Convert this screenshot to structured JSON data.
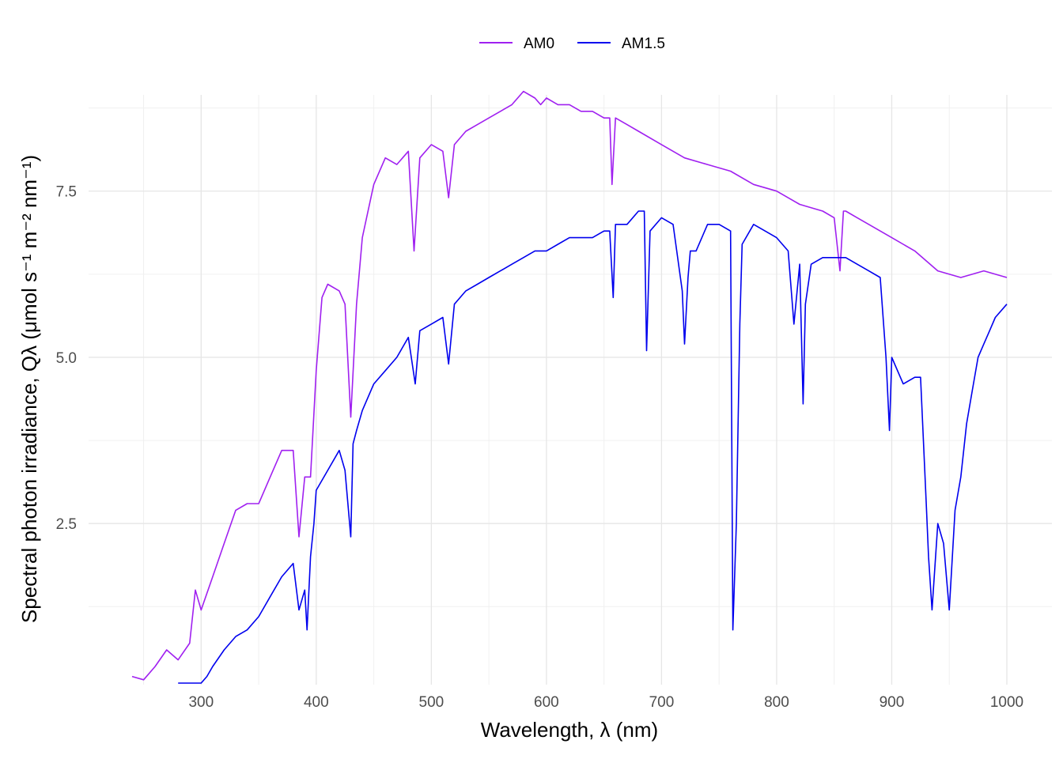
{
  "chart_data": {
    "type": "line",
    "xlabel": "Wavelength,  λ (nm)",
    "ylabel": "Spectral photon irradiance,  Qλ (μmol s⁻¹ m⁻² nm⁻¹)",
    "xlim": [
      240,
      1000
    ],
    "ylim": [
      0.1,
      8.9
    ],
    "x_ticks": [
      "300",
      "400",
      "500",
      "600",
      "700",
      "800",
      "900",
      "1000"
    ],
    "y_ticks": [
      "2.5",
      "5.0",
      "7.5"
    ],
    "grid": true,
    "legend_position": "top",
    "series": [
      {
        "name": "AM0",
        "color": "#a020f0",
        "x": [
          240,
          250,
          260,
          270,
          280,
          290,
          295,
          300,
          310,
          320,
          330,
          340,
          350,
          360,
          370,
          380,
          385,
          390,
          395,
          400,
          405,
          410,
          420,
          425,
          430,
          435,
          440,
          445,
          450,
          460,
          470,
          480,
          485,
          490,
          500,
          510,
          515,
          520,
          530,
          540,
          550,
          560,
          570,
          580,
          590,
          595,
          600,
          610,
          620,
          630,
          640,
          650,
          655,
          657,
          660,
          670,
          680,
          700,
          720,
          740,
          760,
          780,
          800,
          820,
          840,
          850,
          855,
          858,
          860,
          870,
          880,
          900,
          920,
          940,
          960,
          980,
          1000
        ],
        "y": [
          0.2,
          0.15,
          0.35,
          0.6,
          0.45,
          0.7,
          1.5,
          1.2,
          1.7,
          2.2,
          2.7,
          2.8,
          2.8,
          3.2,
          3.6,
          3.6,
          2.3,
          3.2,
          3.2,
          4.8,
          5.9,
          6.1,
          6.0,
          5.8,
          4.1,
          5.8,
          6.8,
          7.2,
          7.6,
          8.0,
          7.9,
          8.1,
          6.6,
          8.0,
          8.2,
          8.1,
          7.4,
          8.2,
          8.4,
          8.5,
          8.6,
          8.7,
          8.8,
          9.0,
          8.9,
          8.8,
          8.9,
          8.8,
          8.8,
          8.7,
          8.7,
          8.6,
          8.6,
          7.6,
          8.6,
          8.5,
          8.4,
          8.2,
          8.0,
          7.9,
          7.8,
          7.6,
          7.5,
          7.3,
          7.2,
          7.1,
          6.3,
          7.2,
          7.2,
          7.1,
          7.0,
          6.8,
          6.6,
          6.3,
          6.2,
          6.3,
          6.2
        ]
      },
      {
        "name": "AM1.5",
        "color": "#0000ee",
        "x": [
          280,
          290,
          295,
          300,
          305,
          310,
          320,
          330,
          340,
          350,
          360,
          370,
          380,
          385,
          390,
          392,
          395,
          398,
          400,
          410,
          420,
          425,
          430,
          432,
          435,
          440,
          450,
          460,
          470,
          480,
          486,
          490,
          500,
          510,
          515,
          520,
          530,
          540,
          550,
          560,
          570,
          580,
          590,
          600,
          610,
          620,
          630,
          640,
          650,
          655,
          658,
          660,
          670,
          680,
          685,
          687,
          690,
          700,
          710,
          718,
          720,
          723,
          725,
          730,
          740,
          750,
          760,
          762,
          765,
          768,
          770,
          780,
          790,
          800,
          810,
          815,
          820,
          823,
          825,
          830,
          840,
          850,
          860,
          870,
          880,
          890,
          895,
          898,
          900,
          910,
          920,
          925,
          930,
          932,
          935,
          940,
          945,
          950,
          955,
          960,
          965,
          970,
          975,
          980,
          985,
          990,
          1000
        ],
        "y": [
          0.1,
          0.1,
          0.1,
          0.1,
          0.2,
          0.35,
          0.6,
          0.8,
          0.9,
          1.1,
          1.4,
          1.7,
          1.9,
          1.2,
          1.5,
          0.9,
          2.0,
          2.5,
          3.0,
          3.3,
          3.6,
          3.3,
          2.3,
          3.7,
          3.9,
          4.2,
          4.6,
          4.8,
          5.0,
          5.3,
          4.6,
          5.4,
          5.5,
          5.6,
          4.9,
          5.8,
          6.0,
          6.1,
          6.2,
          6.3,
          6.4,
          6.5,
          6.6,
          6.6,
          6.7,
          6.8,
          6.8,
          6.8,
          6.9,
          6.9,
          5.9,
          7.0,
          7.0,
          7.2,
          7.2,
          5.1,
          6.9,
          7.1,
          7.0,
          6.0,
          5.2,
          6.2,
          6.6,
          6.6,
          7.0,
          7.0,
          6.9,
          0.9,
          2.5,
          5.5,
          6.7,
          7.0,
          6.9,
          6.8,
          6.6,
          5.5,
          6.4,
          4.3,
          5.8,
          6.4,
          6.5,
          6.5,
          6.5,
          6.4,
          6.3,
          6.2,
          5.0,
          3.9,
          5.0,
          4.6,
          4.7,
          4.7,
          2.8,
          2.0,
          1.2,
          2.5,
          2.2,
          1.2,
          2.7,
          3.2,
          4.0,
          4.5,
          5.0,
          5.2,
          5.4,
          5.6,
          5.8
        ]
      }
    ]
  }
}
